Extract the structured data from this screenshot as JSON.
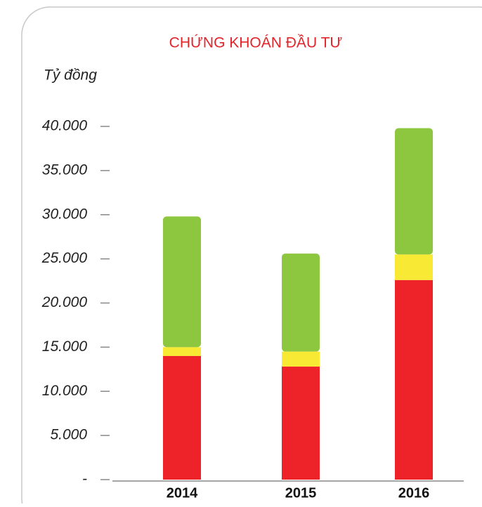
{
  "chart_data": {
    "type": "stacked_bar",
    "title": "CHỨNG KHOÁN ĐẦU TƯ",
    "y_label": "Tỷ đồng",
    "categories": [
      "2014",
      "2015",
      "2016"
    ],
    "series": [
      {
        "color": "#ee2229",
        "values": [
          14000,
          12800,
          22600
        ]
      },
      {
        "color": "#f7e934",
        "values": [
          1000,
          1700,
          2900
        ]
      },
      {
        "color": "#8dc63f",
        "values": [
          14800,
          11100,
          14300
        ]
      }
    ],
    "ylim": [
      0,
      40000
    ],
    "yticks": [
      {
        "value": 0,
        "label": "-"
      },
      {
        "value": 5000,
        "label": "5.000"
      },
      {
        "value": 10000,
        "label": "10.000"
      },
      {
        "value": 15000,
        "label": "15.000"
      },
      {
        "value": 20000,
        "label": "20.000"
      },
      {
        "value": 25000,
        "label": "25.000"
      },
      {
        "value": 30000,
        "label": "30.000"
      },
      {
        "value": 35000,
        "label": "35.000"
      },
      {
        "value": 40000,
        "label": "40.000"
      }
    ]
  }
}
